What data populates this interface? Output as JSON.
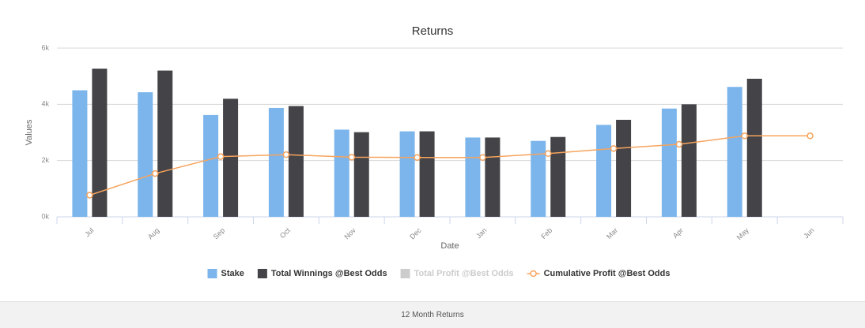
{
  "chart_data": {
    "type": "bar",
    "title": "Returns",
    "x_label": "Date",
    "y_label": "Values",
    "categories": [
      "Jul",
      "Aug",
      "Sep",
      "Oct",
      "Nov",
      "Dec",
      "Jan",
      "Feb",
      "Mar",
      "Apr",
      "May",
      "Jun"
    ],
    "ylim": [
      0,
      6000
    ],
    "yticks": [
      {
        "value": 0,
        "label": "0k"
      },
      {
        "value": 2000,
        "label": "2k"
      },
      {
        "value": 4000,
        "label": "4k"
      },
      {
        "value": 6000,
        "label": "6k"
      }
    ],
    "grid": true,
    "legend": "bottom",
    "series": [
      {
        "name": "Stake",
        "type": "bar",
        "color": "#7cb5ec",
        "values": [
          4500,
          4430,
          3620,
          3870,
          3100,
          3040,
          2820,
          2700,
          3270,
          3850,
          4620,
          null
        ]
      },
      {
        "name": "Total Winnings @Best Odds",
        "type": "bar",
        "color": "#434348",
        "values": [
          5270,
          5200,
          4200,
          3940,
          3010,
          3040,
          2820,
          2840,
          3450,
          4000,
          4910,
          null
        ]
      },
      {
        "name": "Total Profit @Best Odds",
        "type": "bar",
        "color": "#cccccc",
        "visible": false
      },
      {
        "name": "Cumulative Profit @Best Odds",
        "type": "line",
        "color": "#f7a35c",
        "values": [
          770,
          1540,
          2140,
          2210,
          2120,
          2110,
          2110,
          2250,
          2430,
          2580,
          2880,
          2880
        ]
      }
    ]
  },
  "footer": "12 Month Returns"
}
